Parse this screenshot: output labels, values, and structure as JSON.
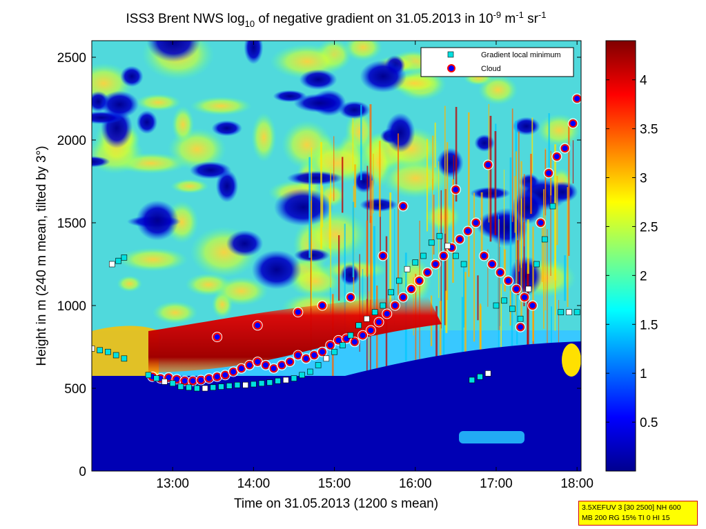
{
  "chart_data": {
    "type": "heatmap",
    "title": {
      "prefix": "ISS3 Brent NWS log",
      "log_base": "10",
      "middle": " of negative gradient on 31.05.2013 in 10",
      "exp1": "-9",
      "unit_m": " m",
      "exp2": "-1",
      "unit_sr": " sr",
      "exp3": "-1"
    },
    "xlabel": "Time on 31.05.2013 (1200 s mean)",
    "ylabel": "Height in m (240 m mean, tilted by 3°)",
    "x_ticks": [
      "13:00",
      "14:00",
      "15:00",
      "16:00",
      "17:00",
      "18:00"
    ],
    "x_tick_hours": [
      13,
      14,
      15,
      16,
      17,
      18
    ],
    "xlim_hours": [
      12.0,
      18.05
    ],
    "y_ticks": [
      0,
      500,
      1000,
      1500,
      2000,
      2500
    ],
    "ylim": [
      0,
      2600
    ],
    "colorbar": {
      "ticks": [
        "0.5",
        "1",
        "1.5",
        "2",
        "2.5",
        "3",
        "3.5",
        "4"
      ],
      "tick_values": [
        0.5,
        1,
        1.5,
        2,
        2.5,
        3,
        3.5,
        4
      ],
      "range": [
        0,
        4.4
      ],
      "colormap": "jet"
    },
    "legend": {
      "placement": "top-right",
      "entries": [
        {
          "label": "Gradient local minimum",
          "marker": "square",
          "color": "#00e0e0"
        },
        {
          "label": "Cloud",
          "marker": "circle",
          "color": "#ff0000",
          "fill": "#0000ff"
        }
      ]
    },
    "series": [
      {
        "name": "Gradient local minimum",
        "points": [
          [
            12.0,
            740
          ],
          [
            12.1,
            730
          ],
          [
            12.2,
            720
          ],
          [
            12.3,
            700
          ],
          [
            12.4,
            680
          ],
          [
            12.25,
            1250
          ],
          [
            12.33,
            1270
          ],
          [
            12.4,
            1290
          ],
          [
            12.7,
            580
          ],
          [
            12.8,
            560
          ],
          [
            12.9,
            540
          ],
          [
            13.0,
            530
          ],
          [
            13.1,
            510
          ],
          [
            13.2,
            505
          ],
          [
            13.3,
            500
          ],
          [
            13.4,
            500
          ],
          [
            13.5,
            505
          ],
          [
            13.6,
            510
          ],
          [
            13.7,
            515
          ],
          [
            13.8,
            520
          ],
          [
            13.9,
            520
          ],
          [
            14.0,
            525
          ],
          [
            14.1,
            530
          ],
          [
            14.2,
            535
          ],
          [
            14.3,
            545
          ],
          [
            14.4,
            550
          ],
          [
            14.5,
            560
          ],
          [
            14.6,
            580
          ],
          [
            14.7,
            600
          ],
          [
            14.8,
            640
          ],
          [
            14.9,
            680
          ],
          [
            15.0,
            720
          ],
          [
            15.1,
            760
          ],
          [
            15.2,
            820
          ],
          [
            15.3,
            880
          ],
          [
            15.4,
            920
          ],
          [
            15.5,
            960
          ],
          [
            15.6,
            1000
          ],
          [
            15.7,
            1080
          ],
          [
            15.8,
            1150
          ],
          [
            15.9,
            1220
          ],
          [
            16.0,
            1260
          ],
          [
            16.1,
            1300
          ],
          [
            16.2,
            1380
          ],
          [
            16.3,
            1420
          ],
          [
            16.4,
            1360
          ],
          [
            16.5,
            1300
          ],
          [
            16.6,
            1250
          ],
          [
            16.7,
            550
          ],
          [
            16.8,
            570
          ],
          [
            16.9,
            590
          ],
          [
            17.0,
            1000
          ],
          [
            17.1,
            1030
          ],
          [
            17.2,
            980
          ],
          [
            17.3,
            920
          ],
          [
            17.4,
            1100
          ],
          [
            17.5,
            1250
          ],
          [
            17.6,
            1400
          ],
          [
            17.7,
            1600
          ],
          [
            17.8,
            960
          ],
          [
            17.9,
            960
          ],
          [
            18.0,
            960
          ]
        ]
      },
      {
        "name": "Cloud",
        "points": [
          [
            12.75,
            570
          ],
          [
            12.85,
            560
          ],
          [
            12.95,
            565
          ],
          [
            13.05,
            555
          ],
          [
            13.15,
            545
          ],
          [
            13.25,
            545
          ],
          [
            13.35,
            550
          ],
          [
            13.45,
            560
          ],
          [
            13.55,
            570
          ],
          [
            13.65,
            580
          ],
          [
            13.75,
            600
          ],
          [
            13.85,
            620
          ],
          [
            13.95,
            640
          ],
          [
            14.05,
            660
          ],
          [
            14.15,
            640
          ],
          [
            14.25,
            620
          ],
          [
            14.35,
            640
          ],
          [
            14.45,
            660
          ],
          [
            14.55,
            700
          ],
          [
            14.65,
            680
          ],
          [
            14.75,
            700
          ],
          [
            14.85,
            720
          ],
          [
            14.95,
            760
          ],
          [
            15.05,
            790
          ],
          [
            15.15,
            800
          ],
          [
            15.25,
            780
          ],
          [
            15.35,
            820
          ],
          [
            15.45,
            850
          ],
          [
            15.55,
            900
          ],
          [
            15.65,
            950
          ],
          [
            15.75,
            1000
          ],
          [
            15.85,
            1050
          ],
          [
            15.95,
            1100
          ],
          [
            16.05,
            1150
          ],
          [
            16.15,
            1200
          ],
          [
            16.25,
            1250
          ],
          [
            16.35,
            1300
          ],
          [
            16.45,
            1350
          ],
          [
            16.55,
            1400
          ],
          [
            16.65,
            1450
          ],
          [
            16.75,
            1500
          ],
          [
            16.85,
            1300
          ],
          [
            16.95,
            1250
          ],
          [
            17.05,
            1200
          ],
          [
            17.15,
            1150
          ],
          [
            17.25,
            1100
          ],
          [
            17.35,
            1050
          ],
          [
            17.45,
            1000
          ],
          [
            17.55,
            1500
          ],
          [
            17.65,
            1800
          ],
          [
            17.75,
            1900
          ],
          [
            17.85,
            1950
          ],
          [
            17.95,
            2100
          ],
          [
            18.0,
            2250
          ],
          [
            13.55,
            810
          ],
          [
            14.05,
            880
          ],
          [
            14.55,
            960
          ],
          [
            14.85,
            1000
          ],
          [
            15.2,
            1050
          ],
          [
            15.6,
            1300
          ],
          [
            15.85,
            1600
          ],
          [
            16.5,
            1700
          ],
          [
            16.9,
            1850
          ],
          [
            17.3,
            870
          ]
        ]
      }
    ]
  },
  "parameter_box": {
    "line1": "3.5XEFUV 3 [30 2500] NH 600",
    "line2": "MB 200 RG 15% TI 0 HI 15"
  }
}
